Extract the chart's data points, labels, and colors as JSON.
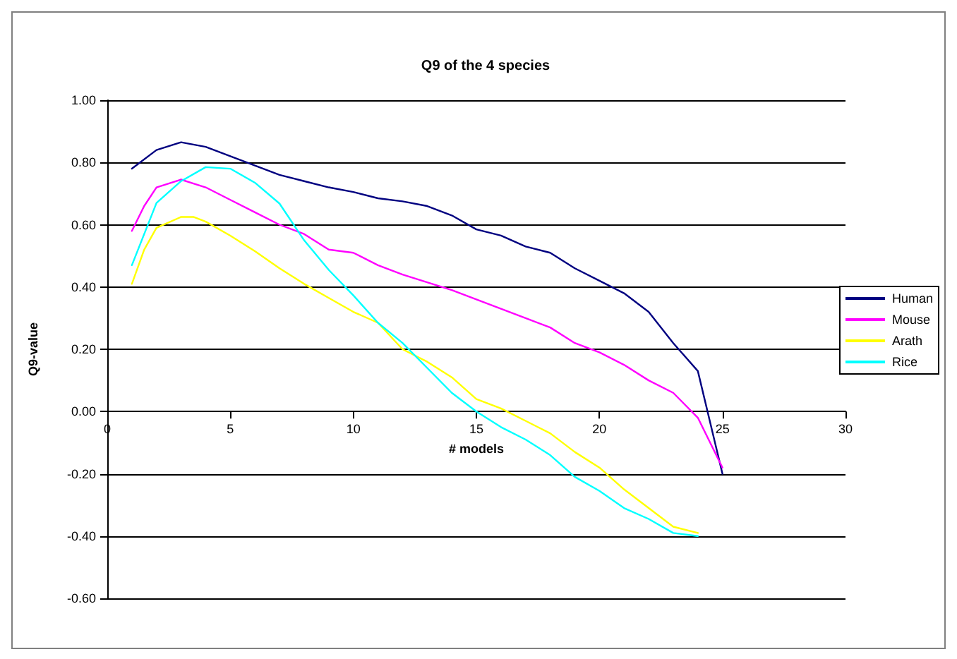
{
  "chart_data": {
    "type": "line",
    "title": "Q9 of the 4 species",
    "xlabel": "# models",
    "ylabel": "Q9-value",
    "xlim": [
      0,
      30
    ],
    "xticks": [
      0,
      5,
      10,
      15,
      20,
      25,
      30
    ],
    "ylim": [
      -0.6,
      1.0
    ],
    "yticks": [
      {
        "value": -0.6,
        "label": "-0.60"
      },
      {
        "value": -0.4,
        "label": "-0.40"
      },
      {
        "value": -0.2,
        "label": "-0.20"
      },
      {
        "value": 0,
        "label": "0.00"
      },
      {
        "value": 0.2,
        "label": "0.20"
      },
      {
        "value": 0.4,
        "label": "0.40"
      },
      {
        "value": 0.6,
        "label": "0.60"
      },
      {
        "value": 0.8,
        "label": "0.80"
      },
      {
        "value": 1.0,
        "label": "1.00"
      }
    ],
    "grid": "y",
    "legend": "right",
    "marker": "none",
    "line_style": "solid",
    "series": [
      {
        "name": "Human",
        "color": "#000080",
        "x": [
          1,
          2,
          3,
          4,
          5,
          6,
          7,
          8,
          9,
          10,
          11,
          12,
          13,
          14,
          15,
          16,
          17,
          18,
          19,
          20,
          21,
          22,
          23,
          24,
          25
        ],
        "values": [
          0.78,
          0.84,
          0.865,
          0.85,
          0.82,
          0.79,
          0.76,
          0.74,
          0.72,
          0.705,
          0.685,
          0.675,
          0.66,
          0.63,
          0.585,
          0.565,
          0.53,
          0.51,
          0.46,
          0.42,
          0.38,
          0.32,
          0.22,
          0.13,
          -0.2
        ]
      },
      {
        "name": "Mouse",
        "color": "#ff00ff",
        "x": [
          1,
          1.5,
          2,
          3,
          4,
          5,
          6,
          7,
          8,
          9,
          10,
          11,
          12,
          13,
          14,
          15,
          16,
          17,
          18,
          19,
          20,
          21,
          22,
          23,
          24,
          25
        ],
        "values": [
          0.58,
          0.66,
          0.72,
          0.745,
          0.72,
          0.68,
          0.64,
          0.6,
          0.57,
          0.52,
          0.51,
          0.47,
          0.44,
          0.415,
          0.39,
          0.36,
          0.33,
          0.3,
          0.27,
          0.22,
          0.19,
          0.15,
          0.1,
          0.06,
          -0.02,
          -0.18
        ]
      },
      {
        "name": "Arath",
        "color": "#ffff00",
        "x": [
          1,
          1.5,
          2,
          3,
          3.5,
          4,
          5,
          6,
          7,
          8,
          9,
          10,
          11,
          12,
          13,
          14,
          15,
          16,
          17,
          18,
          19,
          20,
          21,
          22,
          23,
          24
        ],
        "values": [
          0.41,
          0.52,
          0.59,
          0.625,
          0.625,
          0.61,
          0.565,
          0.515,
          0.46,
          0.41,
          0.365,
          0.32,
          0.285,
          0.2,
          0.16,
          0.11,
          0.04,
          0.01,
          -0.03,
          -0.07,
          -0.13,
          -0.18,
          -0.25,
          -0.31,
          -0.37,
          -0.39
        ]
      },
      {
        "name": "Rice",
        "color": "#00ffff",
        "x": [
          1,
          2,
          3,
          4,
          5,
          6,
          7,
          8,
          9,
          10,
          11,
          12,
          13,
          14,
          15,
          16,
          17,
          18,
          19,
          20,
          21,
          22,
          23,
          24
        ],
        "values": [
          0.47,
          0.67,
          0.74,
          0.785,
          0.78,
          0.735,
          0.668,
          0.55,
          0.455,
          0.373,
          0.285,
          0.22,
          0.14,
          0.06,
          0.0,
          -0.05,
          -0.09,
          -0.14,
          -0.21,
          -0.255,
          -0.31,
          -0.345,
          -0.39,
          -0.4
        ]
      }
    ]
  }
}
